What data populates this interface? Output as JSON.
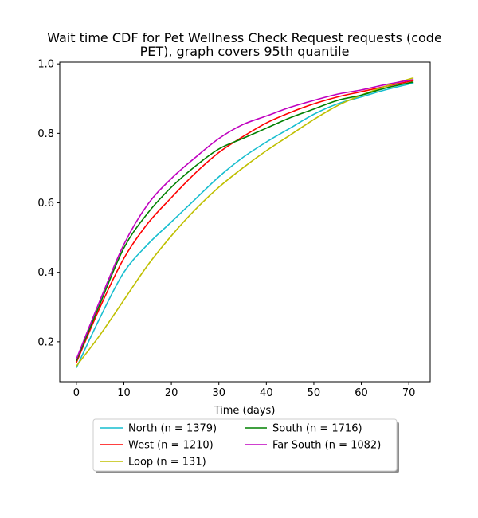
{
  "chart_data": {
    "type": "line",
    "title_lines": [
      "Wait time CDF for Pet Wellness Check Request  requests (code",
      "PET), graph covers 95th quantile"
    ],
    "xlabel": "Time (days)",
    "ylabel": "",
    "xlim": [
      -3.5,
      74.5
    ],
    "ylim": [
      0.085,
      1.005
    ],
    "xticks": [
      0,
      10,
      20,
      30,
      40,
      50,
      60,
      70
    ],
    "yticks": [
      0.2,
      0.4,
      0.6,
      0.8,
      1.0
    ],
    "ytick_labels": [
      "0.2",
      "0.4",
      "0.6",
      "0.8",
      "1.0"
    ],
    "grid": false,
    "legend_placement": "below",
    "x": [
      0,
      5,
      10,
      15,
      20,
      25,
      30,
      35,
      40,
      45,
      50,
      55,
      60,
      65,
      71
    ],
    "series": [
      {
        "name": "North (n = 1379)",
        "color": "#17becf",
        "values": [
          0.125,
          0.27,
          0.4,
          0.48,
          0.545,
          0.61,
          0.675,
          0.73,
          0.775,
          0.815,
          0.855,
          0.885,
          0.905,
          0.925,
          0.945
        ]
      },
      {
        "name": "West (n = 1210)",
        "color": "#ff0000",
        "values": [
          0.14,
          0.3,
          0.44,
          0.54,
          0.615,
          0.685,
          0.745,
          0.79,
          0.83,
          0.86,
          0.885,
          0.905,
          0.92,
          0.935,
          0.952
        ]
      },
      {
        "name": "Loop (n = 131)",
        "color": "#bfbf00",
        "values": [
          0.13,
          0.22,
          0.32,
          0.42,
          0.505,
          0.58,
          0.645,
          0.7,
          0.75,
          0.795,
          0.84,
          0.88,
          0.91,
          0.935,
          0.96
        ]
      },
      {
        "name": "South (n = 1716)",
        "color": "#008000",
        "values": [
          0.145,
          0.31,
          0.47,
          0.57,
          0.645,
          0.705,
          0.755,
          0.785,
          0.815,
          0.845,
          0.87,
          0.895,
          0.91,
          0.93,
          0.948
        ]
      },
      {
        "name": "Far South (n = 1082)",
        "color": "#bf00bf",
        "values": [
          0.15,
          0.32,
          0.48,
          0.595,
          0.67,
          0.73,
          0.785,
          0.825,
          0.85,
          0.875,
          0.895,
          0.913,
          0.925,
          0.94,
          0.955
        ]
      }
    ]
  }
}
